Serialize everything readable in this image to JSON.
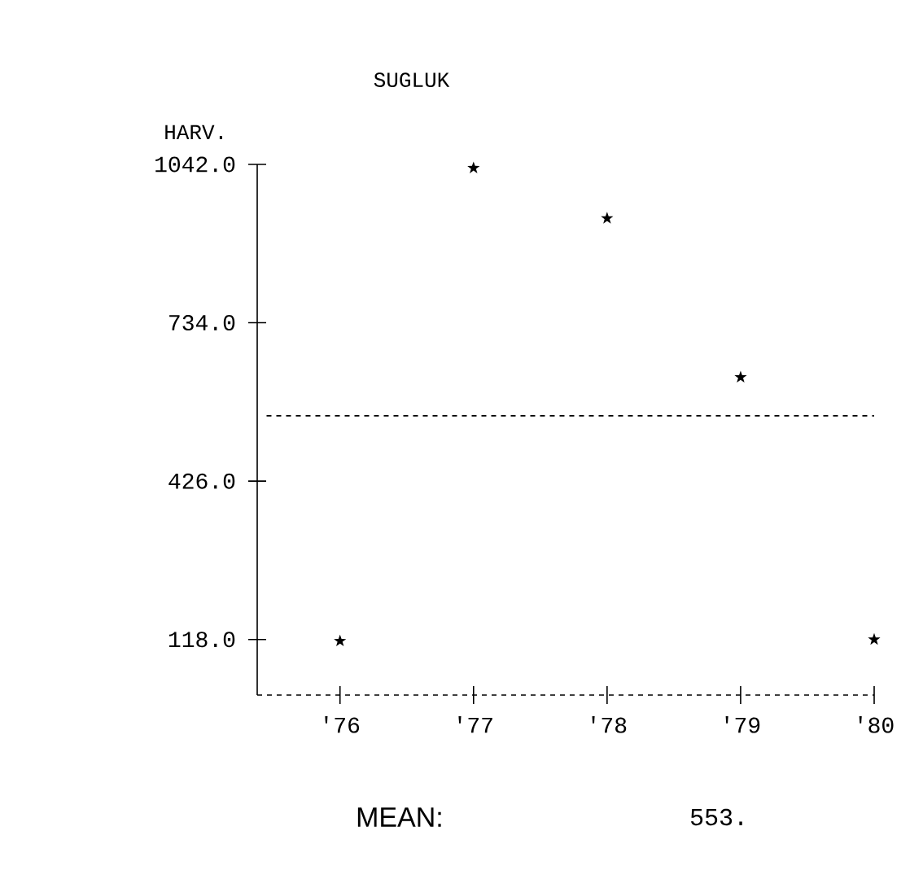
{
  "chart_data": {
    "type": "scatter",
    "title": "SUGLUK",
    "ylabel": "HARV.",
    "categories": [
      "'76",
      "'77",
      "'78",
      "'79",
      "'80"
    ],
    "values": [
      115,
      1035,
      937,
      628,
      118
    ],
    "color": "#000000",
    "marker": "star",
    "ylim": [
      10,
      1042
    ],
    "yticks": [
      {
        "value": 118,
        "label": "118.0"
      },
      {
        "value": 426,
        "label": "426.0"
      },
      {
        "value": 734,
        "label": "734.0"
      },
      {
        "value": 1042,
        "label": "1042.0"
      }
    ],
    "ref_lines": [
      {
        "axis": "y",
        "value": 553,
        "line_style": "dashed"
      }
    ],
    "annotations": [
      "MEAN:",
      "553."
    ],
    "grid": false
  }
}
